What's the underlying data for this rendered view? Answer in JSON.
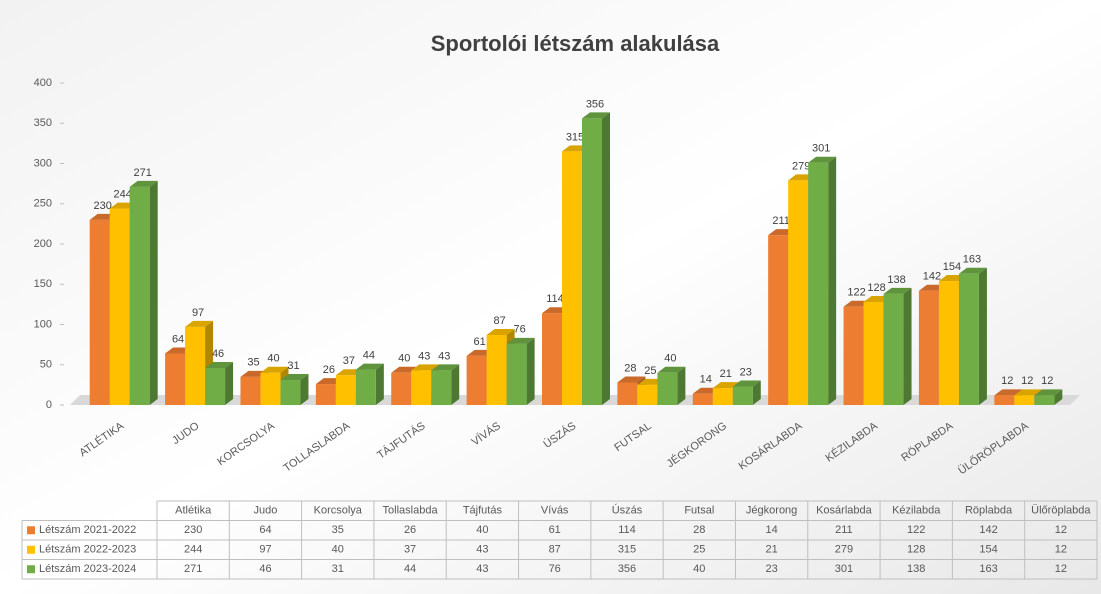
{
  "chart_data": {
    "type": "bar3d",
    "title": "Sportolói létszám alakulása",
    "categories": [
      "ATLÉTIKA",
      "JUDO",
      "KORCSOLYA",
      "TOLLASLABDA",
      "TÁJFUTÁS",
      "VÍVÁS",
      "ÚSZÁS",
      "FUTSAL",
      "JÉGKORONG",
      "KOSÁRLABDA",
      "KÉZILABDA",
      "RÖPLABDA",
      "ÜLŐRÖPLABDA"
    ],
    "table_columns": [
      "Atlétika",
      "Judo",
      "Korcsolya",
      "Tollaslabda",
      "Tájfutás",
      "Vívás",
      "Úszás",
      "Futsal",
      "Jégkorong",
      "Kosárlabda",
      "Kézilabda",
      "Röplabda",
      "Ülőröplabda"
    ],
    "series": [
      {
        "name": "Létszám 2021-2022",
        "color": "#ed7d31",
        "values": [
          230,
          64,
          35,
          26,
          40,
          61,
          114,
          28,
          14,
          211,
          122,
          142,
          12
        ]
      },
      {
        "name": "Létszám 2022-2023",
        "color": "#ffc000",
        "values": [
          244,
          97,
          40,
          37,
          43,
          87,
          315,
          25,
          21,
          279,
          128,
          154,
          12
        ]
      },
      {
        "name": "Létszám 2023-2024",
        "color": "#70ad47",
        "values": [
          271,
          46,
          31,
          44,
          43,
          76,
          356,
          40,
          23,
          301,
          138,
          163,
          12
        ]
      }
    ],
    "ylim": [
      0,
      400
    ],
    "yticks": [
      0,
      50,
      100,
      150,
      200,
      250,
      300,
      350,
      400
    ],
    "grid": false
  }
}
